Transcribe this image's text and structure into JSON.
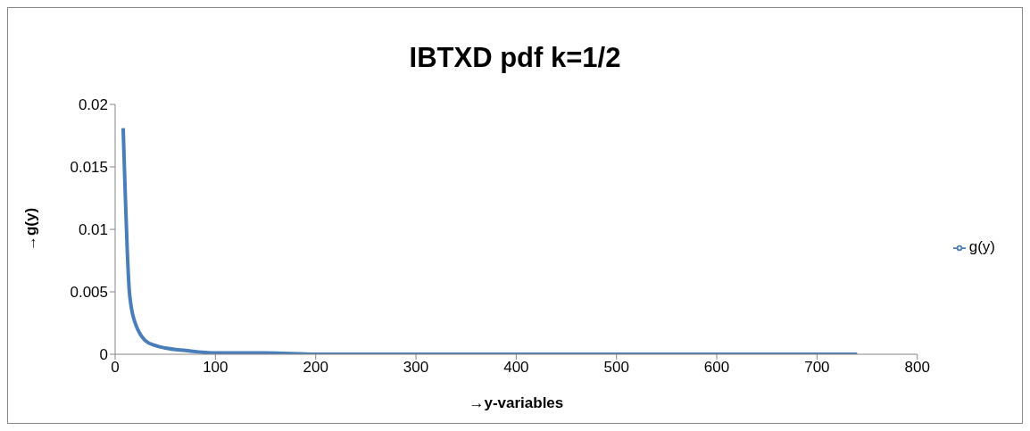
{
  "chart_data": {
    "type": "line",
    "title": "IBTXD pdf k=1/2",
    "xlabel": "→y-variables",
    "ylabel": "→g(y)",
    "x": [
      8,
      10,
      12,
      14,
      16,
      20,
      25,
      30,
      40,
      50,
      70,
      100,
      150,
      200,
      300,
      400,
      500,
      600,
      740
    ],
    "series": [
      {
        "name": "g(y)",
        "color": "#4a7ebb",
        "values": [
          0.0181,
          0.013,
          0.0085,
          0.0052,
          0.0038,
          0.0025,
          0.0016,
          0.0011,
          0.0007,
          0.0005,
          0.0003,
          0.0001,
          0.0001,
          0,
          0,
          0,
          0,
          0,
          0
        ]
      }
    ],
    "xlim": [
      0,
      800
    ],
    "xticks": [
      0,
      100,
      200,
      300,
      400,
      500,
      600,
      700,
      800
    ],
    "ylim": [
      0,
      0.02
    ],
    "yticks": [
      0,
      0.005,
      0.01,
      0.015,
      0.02
    ],
    "grid": false,
    "legend": "right",
    "marker": "none",
    "line_style": "solid"
  }
}
